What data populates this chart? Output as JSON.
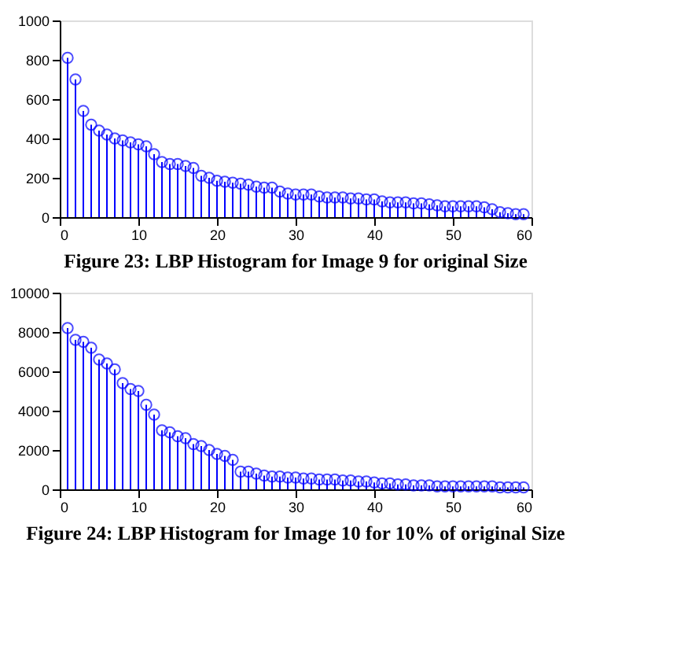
{
  "chart_data": [
    {
      "type": "lollipop",
      "title": "Figure 23: LBP Histogram for Image 9 for original Size",
      "x": [
        1,
        2,
        3,
        4,
        5,
        6,
        7,
        8,
        9,
        10,
        11,
        12,
        13,
        14,
        15,
        16,
        17,
        18,
        19,
        20,
        21,
        22,
        23,
        24,
        25,
        26,
        27,
        28,
        29,
        30,
        31,
        32,
        33,
        34,
        35,
        36,
        37,
        38,
        39,
        40,
        41,
        42,
        43,
        44,
        45,
        46,
        47,
        48,
        49,
        50,
        51,
        52,
        53,
        54,
        55,
        56,
        57,
        58,
        59
      ],
      "series": [
        {
          "color": "#0000ff",
          "values": [
            810,
            700,
            540,
            470,
            440,
            420,
            400,
            390,
            380,
            370,
            360,
            320,
            280,
            270,
            270,
            260,
            250,
            210,
            200,
            185,
            180,
            175,
            170,
            165,
            155,
            150,
            150,
            130,
            120,
            115,
            115,
            115,
            105,
            100,
            100,
            100,
            95,
            95,
            90,
            90,
            80,
            75,
            75,
            75,
            70,
            70,
            65,
            60,
            55,
            55,
            55,
            55,
            55,
            50,
            40,
            25,
            20,
            15,
            15
          ]
        }
      ],
      "xlim": [
        0,
        60
      ],
      "xticks": [
        0,
        10,
        20,
        30,
        40,
        50,
        60
      ],
      "ylim": [
        0,
        1000
      ],
      "yticks": [
        0,
        200,
        400,
        600,
        800,
        1000
      ],
      "marker": "circle",
      "grid": false
    },
    {
      "type": "lollipop",
      "title": "Figure 24: LBP Histogram for Image 10 for 10% of original Size",
      "x": [
        1,
        2,
        3,
        4,
        5,
        6,
        7,
        8,
        9,
        10,
        11,
        12,
        13,
        14,
        15,
        16,
        17,
        18,
        19,
        20,
        21,
        22,
        23,
        24,
        25,
        26,
        27,
        28,
        29,
        30,
        31,
        32,
        33,
        34,
        35,
        36,
        37,
        38,
        39,
        40,
        41,
        42,
        43,
        44,
        45,
        46,
        47,
        48,
        49,
        50,
        51,
        52,
        53,
        54,
        55,
        56,
        57,
        58,
        59
      ],
      "series": [
        {
          "color": "#0000ff",
          "values": [
            8200,
            7600,
            7500,
            7200,
            6600,
            6400,
            6100,
            5400,
            5100,
            5000,
            4300,
            3800,
            3000,
            2900,
            2700,
            2600,
            2300,
            2200,
            2000,
            1800,
            1700,
            1500,
            900,
            900,
            800,
            700,
            650,
            650,
            600,
            600,
            550,
            550,
            500,
            500,
            500,
            450,
            450,
            400,
            400,
            350,
            300,
            300,
            250,
            250,
            200,
            200,
            200,
            150,
            150,
            150,
            150,
            150,
            150,
            150,
            150,
            100,
            100,
            100,
            100
          ]
        }
      ],
      "xlim": [
        0,
        60
      ],
      "xticks": [
        0,
        10,
        20,
        30,
        40,
        50,
        60
      ],
      "ylim": [
        0,
        10000
      ],
      "yticks": [
        0,
        2000,
        4000,
        6000,
        8000,
        10000
      ],
      "marker": "circle",
      "grid": false
    }
  ]
}
